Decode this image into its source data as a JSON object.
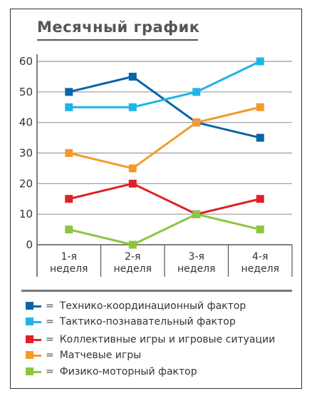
{
  "chart_data": {
    "type": "line",
    "title": "Месячный график",
    "categories": [
      "1-я неделя",
      "2-я неделя",
      "3-я неделя",
      "4-я неделя"
    ],
    "category_lines": [
      [
        "1-я",
        "неделя"
      ],
      [
        "2-я",
        "неделя"
      ],
      [
        "3-я",
        "неделя"
      ],
      [
        "4-я",
        "неделя"
      ]
    ],
    "ylim": [
      0,
      60
    ],
    "yticks": [
      "0",
      "10",
      "20",
      "30",
      "40",
      "50",
      "60"
    ],
    "grid": true,
    "legend_placement": "bottom",
    "series": [
      {
        "name": "Технико-координационный фактор",
        "color": "#0a64a8",
        "values": [
          50,
          55,
          40,
          35
        ]
      },
      {
        "name": "Тактико-познавательный фактор",
        "color": "#1fb4e8",
        "values": [
          45,
          45,
          50,
          60
        ]
      },
      {
        "name": "Коллективные игры и игровые ситуации",
        "color": "#e01f26",
        "values": [
          15,
          20,
          10,
          15
        ]
      },
      {
        "name": "Матчевые игры",
        "color": "#f39a2b",
        "values": [
          30,
          25,
          40,
          45
        ]
      },
      {
        "name": "Физико-моторный фактор",
        "color": "#8cc63f",
        "values": [
          5,
          0,
          10,
          5
        ]
      }
    ]
  },
  "legend": {
    "eq": "=",
    "items": [
      "Технико-координационный фактор",
      "Тактико-познавательный фактор",
      "Коллективные игры и игровые ситуации",
      "Матчевые игры",
      "Физико-моторный фактор"
    ]
  }
}
